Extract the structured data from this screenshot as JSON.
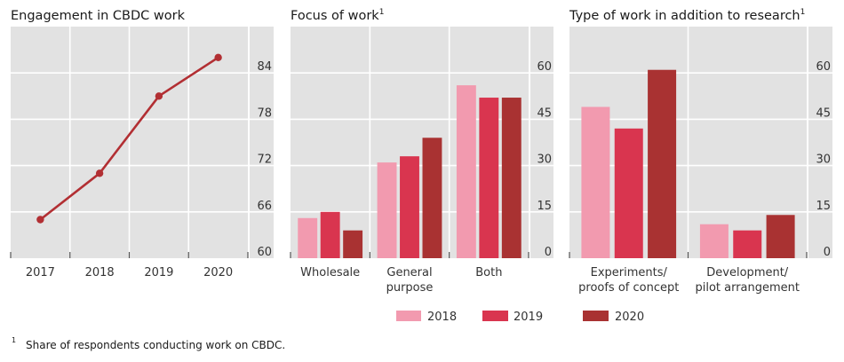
{
  "colors": {
    "plot_bg": "#E2E2E2",
    "grid": "#FFFFFF",
    "line": "#B22F33",
    "2018": "#F29AAF",
    "2019": "#D9354F",
    "2020": "#A93232"
  },
  "chart_data": [
    {
      "type": "line",
      "title": "Engagement in CBDC work",
      "title_sup": "",
      "categories": [
        "2017",
        "2018",
        "2019",
        "2020"
      ],
      "values": [
        65,
        71,
        81,
        86
      ],
      "ylim": [
        60,
        90
      ],
      "yticks": [
        60,
        66,
        72,
        78,
        84
      ],
      "axis_side": "right",
      "grid": true
    },
    {
      "type": "bar",
      "title": "Focus of work",
      "title_sup": "1",
      "categories": [
        [
          "Wholesale"
        ],
        [
          "General",
          "purpose"
        ],
        [
          "Both"
        ]
      ],
      "series": [
        {
          "name": "2018",
          "values": [
            13,
            31,
            56
          ]
        },
        {
          "name": "2019",
          "values": [
            15,
            33,
            52
          ]
        },
        {
          "name": "2020",
          "values": [
            9,
            39,
            52
          ]
        }
      ],
      "ylim": [
        0,
        75
      ],
      "yticks": [
        0,
        15,
        30,
        45,
        60
      ],
      "axis_side": "right",
      "grid": true
    },
    {
      "type": "bar",
      "title": "Type of work in addition to research",
      "title_sup": "1",
      "categories": [
        [
          "Experiments/",
          "proofs of concept"
        ],
        [
          "Development/",
          "pilot arrangement"
        ]
      ],
      "series": [
        {
          "name": "2018",
          "values": [
            49,
            11
          ]
        },
        {
          "name": "2019",
          "values": [
            42,
            9
          ]
        },
        {
          "name": "2020",
          "values": [
            61,
            14
          ]
        }
      ],
      "ylim": [
        0,
        75
      ],
      "yticks": [
        0,
        15,
        30,
        45,
        60
      ],
      "axis_side": "right",
      "grid": true
    }
  ],
  "legend": {
    "placement": "bottom-center",
    "items": [
      "2018",
      "2019",
      "2020"
    ]
  },
  "footnote": {
    "marker": "1",
    "text": "Share of respondents conducting work on CBDC."
  }
}
